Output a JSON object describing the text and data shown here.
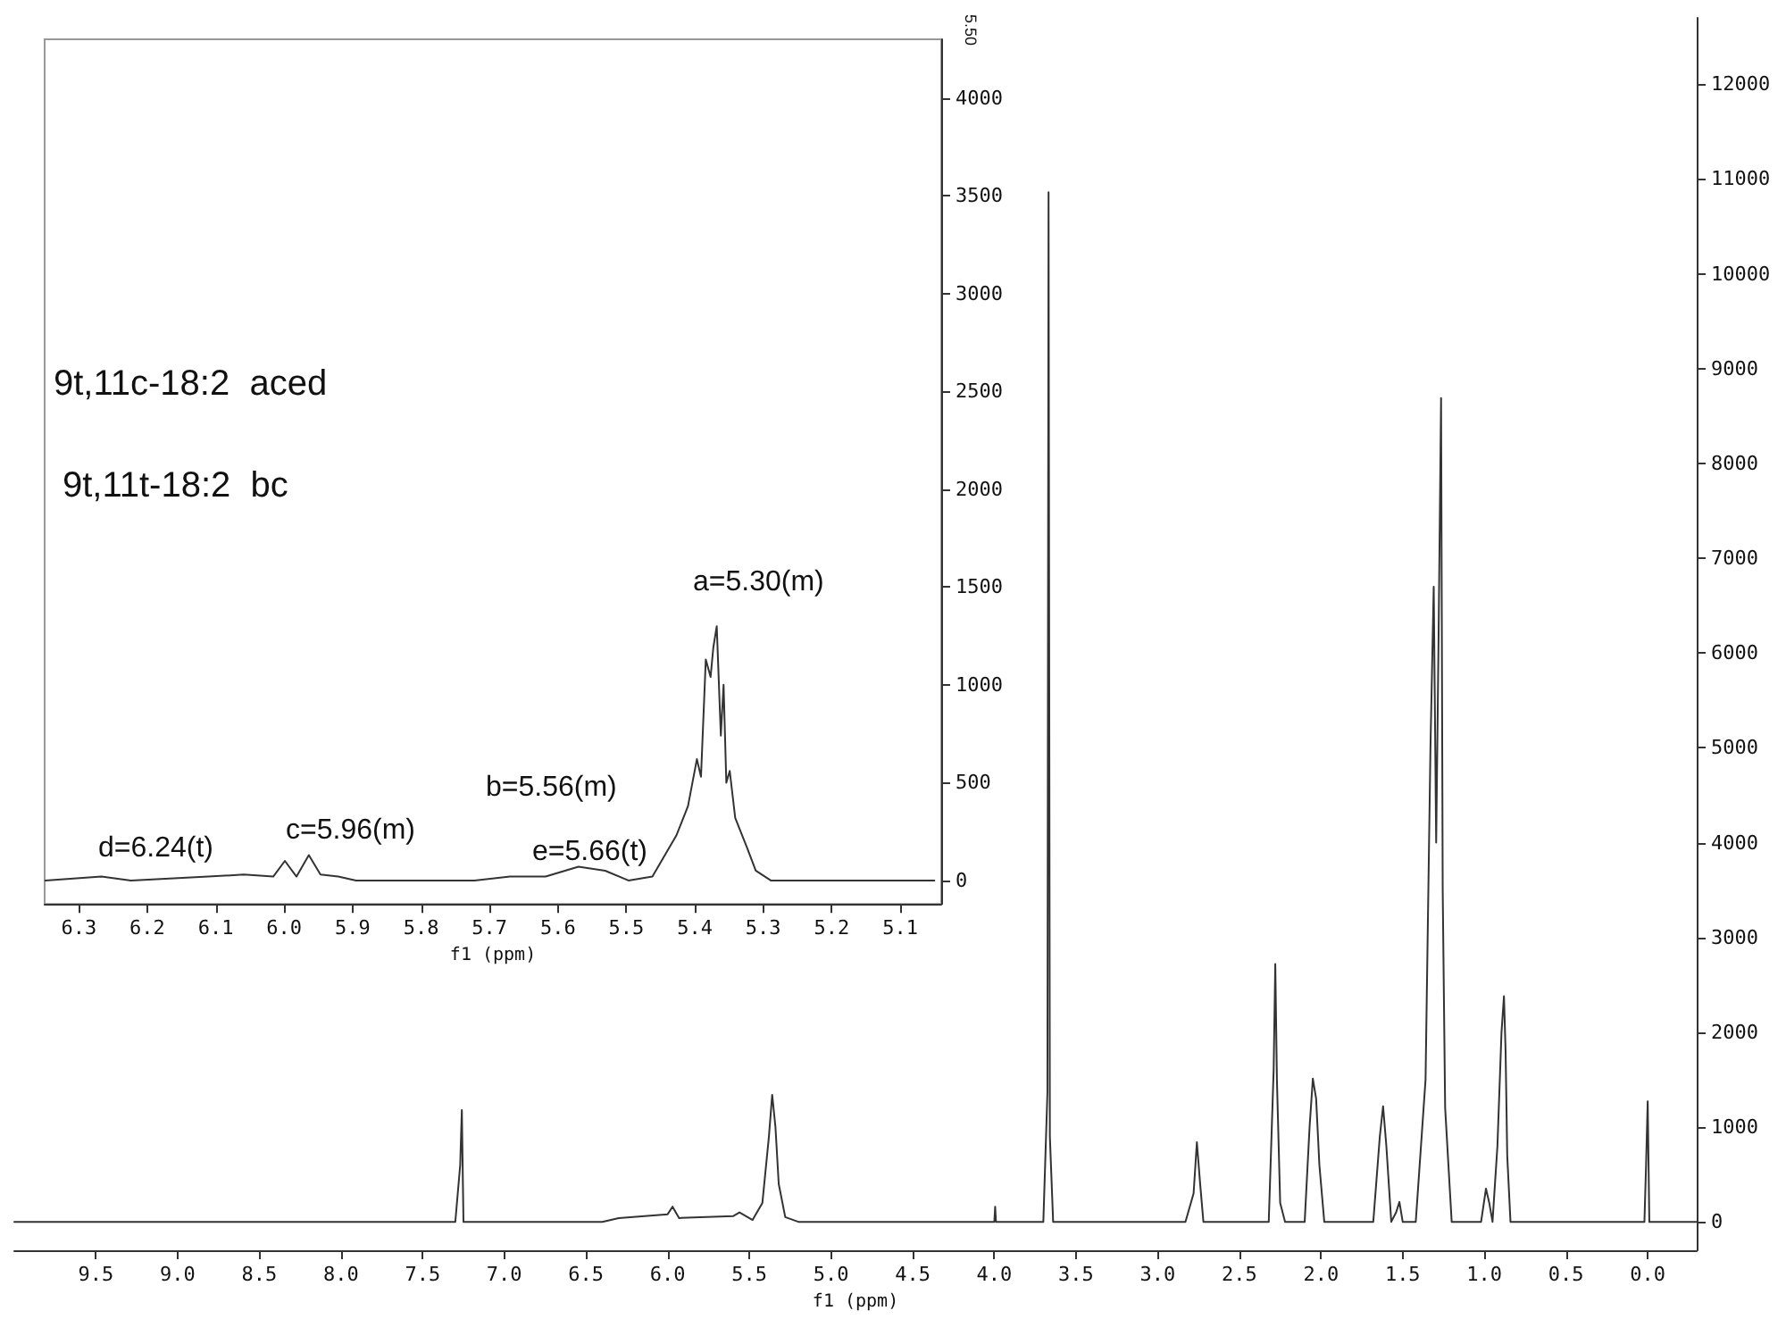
{
  "chart_data": [
    {
      "type": "line",
      "xlabel": "f1 (ppm)",
      "xlim": [
        10.0,
        -0.3
      ],
      "ylim": [
        -300,
        12700
      ],
      "xticks": [
        9.5,
        {
          "value": 9.0,
          "label": "9.0"
        },
        8.5,
        {
          "value": 8.0,
          "label": "8.0"
        },
        7.5,
        {
          "value": 7.0,
          "label": "7.0"
        },
        6.5,
        {
          "value": 6.0,
          "label": "6.0"
        },
        5.5,
        {
          "value": 5.0,
          "label": "5.0"
        },
        4.5,
        {
          "value": 4.0,
          "label": "4.0"
        },
        3.5,
        {
          "value": 3.0,
          "label": "3.0"
        },
        2.5,
        {
          "value": 2.0,
          "label": "2.0"
        },
        1.5,
        {
          "value": 1.0,
          "label": "1.0"
        },
        0.5,
        {
          "value": 0,
          "label": "0.0"
        }
      ],
      "yticks": [
        0,
        1000,
        2000,
        3000,
        4000,
        5000,
        6000,
        7000,
        8000,
        9000,
        10000,
        11000,
        12000
      ],
      "series": [
        {
          "color": "#333333",
          "x": [
            10.0,
            7.3,
            7.27,
            7.26,
            7.25,
            6.4,
            6.3,
            6.0,
            5.97,
            5.93,
            5.6,
            5.56,
            5.48,
            5.42,
            5.38,
            5.36,
            5.34,
            5.32,
            5.28,
            5.2,
            4.0,
            3.995,
            3.99,
            3.7,
            3.675,
            3.668,
            3.66,
            3.64,
            2.83,
            2.78,
            2.76,
            2.74,
            2.72,
            2.32,
            2.29,
            2.28,
            2.27,
            2.25,
            2.22,
            2.1,
            2.07,
            2.05,
            2.03,
            2.01,
            1.98,
            1.68,
            1.64,
            1.62,
            1.6,
            1.57,
            1.54,
            1.52,
            1.5,
            1.42,
            1.36,
            1.33,
            1.31,
            1.295,
            1.28,
            1.265,
            1.255,
            1.24,
            1.2,
            1.02,
            0.99,
            0.97,
            0.95,
            0.92,
            0.895,
            0.88,
            0.87,
            0.86,
            0.84,
            0.02,
            0.01,
            0.0,
            -0.01,
            -0.3
          ],
          "values": [
            0,
            0,
            600,
            1180,
            0,
            0,
            40,
            80,
            160,
            40,
            60,
            100,
            20,
            200,
            900,
            1340,
            1000,
            400,
            50,
            0,
            0,
            160,
            0,
            0,
            1360,
            10860,
            900,
            0,
            0,
            300,
            840,
            400,
            0,
            0,
            1600,
            2720,
            1500,
            200,
            0,
            0,
            1000,
            1510,
            1300,
            600,
            0,
            0,
            900,
            1220,
            800,
            0,
            100,
            210,
            0,
            0,
            1500,
            5000,
            6700,
            4000,
            6200,
            8690,
            3500,
            1200,
            0,
            0,
            350,
            200,
            0,
            800,
            2000,
            2380,
            1800,
            700,
            0,
            0,
            600,
            1270,
            0,
            0
          ]
        }
      ]
    },
    {
      "type": "line",
      "xlabel": "f1 (ppm)",
      "xlim": [
        6.35,
        5.04
      ],
      "ylim": [
        -120,
        4300
      ],
      "xticks": [
        6.3,
        6.2,
        6.1,
        {
          "value": 6.0,
          "label": "6.0"
        },
        5.9,
        5.8,
        5.7,
        5.6,
        5.5,
        5.4,
        5.3,
        5.2,
        5.1
      ],
      "yticks": [
        0,
        500,
        1000,
        1500,
        2000,
        2500,
        3000,
        3500,
        4000
      ],
      "annotations": [
        "9t,11c-18:2  aced",
        "9t,11t-18:2  bc",
        "5.50",
        "a=5.30(m)",
        "b=5.56(m)",
        "e=5.66(t)",
        "c=5.96(m)",
        "d=6.24(t)"
      ],
      "series": [
        {
          "color": "#333333",
          "x": [
            6.349,
            6.267,
            6.224,
            6.111,
            6.059,
            6.016,
            5.999,
            5.982,
            5.964,
            5.947,
            5.921,
            5.895,
            5.722,
            5.67,
            5.618,
            5.57,
            5.531,
            5.497,
            5.462,
            5.427,
            5.41,
            5.397,
            5.391,
            5.384,
            5.377,
            5.373,
            5.368,
            5.362,
            5.358,
            5.354,
            5.349,
            5.341,
            5.324,
            5.311,
            5.289,
            5.05
          ],
          "values": [
            0,
            20,
            0,
            20,
            30,
            20,
            100,
            20,
            130,
            30,
            20,
            0,
            0,
            20,
            20,
            70,
            50,
            0,
            20,
            230,
            380,
            620,
            530,
            1130,
            1040,
            1190,
            1300,
            740,
            1000,
            500,
            560,
            320,
            170,
            50,
            0,
            0
          ]
        }
      ]
    }
  ]
}
